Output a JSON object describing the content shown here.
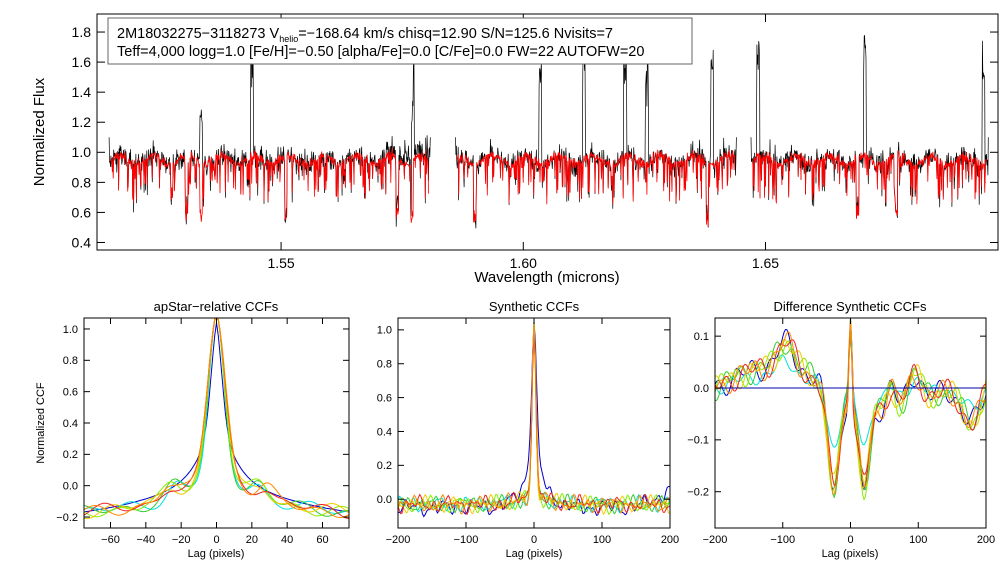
{
  "header": {
    "line1_id": "2M18032275−3118273",
    "line1_v": "V",
    "line1_vsub": "helio",
    "line1_rest": "=−168.64 km/s  chisq=12.90  S/N=125.6  Nvisits=7",
    "line2": "Teff=4,000 logg=1.0 [Fe/H]=−0.50 [alpha/Fe]=0.0 [C/Fe]=0.0 FW=22 AUTOFW=20"
  },
  "colors": {
    "observed": "#000000",
    "model": "#ff0000",
    "ccf_lines": [
      "#0000cc",
      "#00e0e0",
      "#33cc33",
      "#88ee00",
      "#eecc00",
      "#ee2222",
      "#ff8800"
    ],
    "zero_line": "#0000aa"
  },
  "chart_data": [
    {
      "id": "spectrum",
      "type": "line",
      "title": "",
      "xlabel": "Wavelength (microns)",
      "ylabel": "Normalized Flux",
      "xlim": [
        1.512,
        1.698
      ],
      "ylim": [
        0.35,
        1.92
      ],
      "xticks": [
        1.55,
        1.6,
        1.65
      ],
      "xtick_labels": [
        "1.55",
        "1.60",
        "1.65"
      ],
      "yticks": [
        0.4,
        0.6,
        0.8,
        1.0,
        1.2,
        1.4,
        1.6,
        1.8
      ],
      "ytick_labels": [
        "0.4",
        "0.6",
        "0.8",
        "1.0",
        "1.2",
        "1.4",
        "1.6",
        "1.8"
      ],
      "chips": [
        [
          1.5145,
          1.5808
        ],
        [
          1.586,
          1.644
        ],
        [
          1.647,
          1.696
        ]
      ],
      "series": [
        {
          "name": "observed",
          "color": "#000000"
        },
        {
          "name": "model",
          "color": "#ff0000"
        }
      ],
      "emission_spikes": [
        1.5335,
        1.544,
        1.5772,
        1.6035,
        1.6125,
        1.621,
        1.6255,
        1.639,
        1.6485,
        1.6705,
        1.695
      ],
      "absorption_dips": [
        1.5305,
        1.5335,
        1.551,
        1.574,
        1.577,
        1.59,
        1.638,
        1.669,
        1.677
      ]
    },
    {
      "id": "aprel",
      "type": "line",
      "title": "apStar−relative CCFs",
      "xlabel": "Lag (pixels)",
      "ylabel": "Normalized CCF",
      "xlim": [
        -75,
        75
      ],
      "ylim": [
        -0.27,
        1.07
      ],
      "xticks": [
        -60,
        -40,
        -20,
        0,
        20,
        40,
        60
      ],
      "xtick_labels": [
        "−60",
        "−40",
        "−20",
        "0",
        "20",
        "40",
        "60"
      ],
      "yticks": [
        -0.2,
        0.0,
        0.2,
        0.4,
        0.6,
        0.8,
        1.0
      ],
      "ytick_labels": [
        "−0.2",
        "0.0",
        "0.2",
        "0.4",
        "0.6",
        "0.8",
        "1.0"
      ],
      "series_count": 7,
      "peak": {
        "x": 0,
        "y": 1.0
      }
    },
    {
      "id": "synth",
      "type": "line",
      "title": "Synthetic CCFs",
      "xlabel": "Lag (pixels)",
      "ylabel": "",
      "xlim": [
        -200,
        200
      ],
      "ylim": [
        -0.17,
        1.07
      ],
      "xticks": [
        -200,
        -100,
        0,
        100,
        200
      ],
      "xtick_labels": [
        "−200",
        "−100",
        "0",
        "100",
        "200"
      ],
      "yticks": [
        0.0,
        0.2,
        0.4,
        0.6,
        0.8,
        1.0
      ],
      "ytick_labels": [
        "0.0",
        "0.2",
        "0.4",
        "0.6",
        "0.8",
        "1.0"
      ],
      "series_count": 7,
      "peak": {
        "x": 0,
        "y": 1.0
      }
    },
    {
      "id": "diff",
      "type": "line",
      "title": "Difference Synthetic CCFs",
      "xlabel": "Lag (pixels)",
      "ylabel": "",
      "xlim": [
        -200,
        200
      ],
      "ylim": [
        -0.27,
        0.135
      ],
      "xticks": [
        -200,
        -100,
        0,
        100,
        200
      ],
      "xtick_labels": [
        "−200",
        "−100",
        "0",
        "100",
        "200"
      ],
      "yticks": [
        -0.2,
        -0.1,
        0.0,
        0.1
      ],
      "ytick_labels": [
        "−0.2",
        "−0.1",
        "0.0",
        "0.1"
      ],
      "series_count": 7,
      "zero_line": 0.0
    }
  ]
}
